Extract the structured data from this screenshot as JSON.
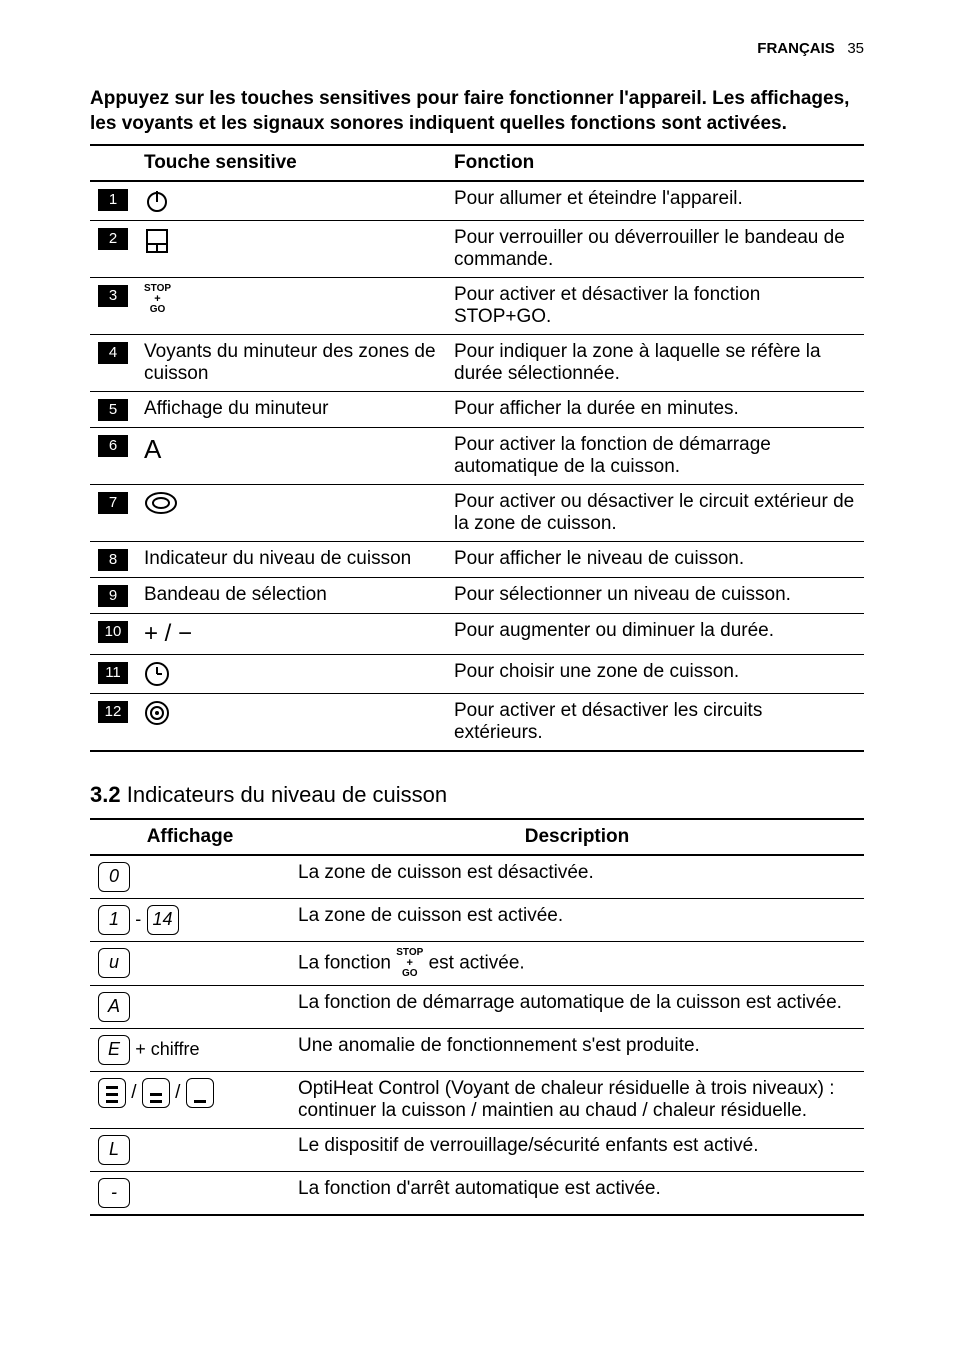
{
  "header": {
    "lang": "FRANÇAIS",
    "page_number": "35"
  },
  "intro": "Appuyez sur les touches sensitives pour faire fonctionner l'appareil. Les affichages, les voyants et les signaux sonores indiquent quelles fonctions sont activées.",
  "table1": {
    "headers": {
      "touche": "Touche sensitive",
      "fonction": "Fonction"
    },
    "rows": [
      {
        "num": "1",
        "icon": "power",
        "label": "",
        "fn": "Pour allumer et éteindre l'appareil."
      },
      {
        "num": "2",
        "icon": "lock-panel",
        "label": "",
        "fn": "Pour verrouiller ou déverrouiller le bandeau de commande."
      },
      {
        "num": "3",
        "icon": "stopgo",
        "label": "",
        "fn": "Pour activer et désactiver la fonction STOP+GO."
      },
      {
        "num": "4",
        "icon": "",
        "label": "Voyants du minuteur des zones de cuisson",
        "fn": "Pour indiquer la zone à laquelle se réfère la durée sélectionnée."
      },
      {
        "num": "5",
        "icon": "",
        "label": "Affichage du minuteur",
        "fn": "Pour afficher la durée en minutes."
      },
      {
        "num": "6",
        "icon": "letter-a",
        "label": "",
        "fn": "Pour activer la fonction de démarrage automatique de la cuisson."
      },
      {
        "num": "7",
        "icon": "oval-ring",
        "label": "",
        "fn": "Pour activer ou désactiver le circuit extérieur de la zone de cuisson."
      },
      {
        "num": "8",
        "icon": "",
        "label": "Indicateur du niveau de cuisson",
        "fn": "Pour afficher le niveau de cuisson."
      },
      {
        "num": "9",
        "icon": "",
        "label": "Bandeau de sélection",
        "fn": "Pour sélectionner un niveau de cuisson."
      },
      {
        "num": "10",
        "icon": "plus-minus",
        "label": "",
        "fn": "Pour augmenter ou diminuer la durée."
      },
      {
        "num": "11",
        "icon": "clock",
        "label": "",
        "fn": "Pour choisir une zone de cuisson."
      },
      {
        "num": "12",
        "icon": "double-ring",
        "label": "",
        "fn": "Pour activer et désactiver les circuits extérieurs."
      }
    ]
  },
  "section32": {
    "num": "3.2",
    "title": "Indicateurs du niveau de cuisson"
  },
  "table2": {
    "headers": {
      "affichage": "Affichage",
      "description": "Description"
    },
    "rows": [
      {
        "disp_type": "seg-single",
        "glyph": "0",
        "extra": "",
        "desc": "La zone de cuisson est désactivée."
      },
      {
        "disp_type": "seg-range",
        "glyph": "1",
        "glyph2": "14",
        "desc": "La zone de cuisson est activée."
      },
      {
        "disp_type": "seg-single",
        "glyph": "u",
        "extra": "",
        "desc_prefix": "La fonction ",
        "desc_suffix": " est activée."
      },
      {
        "disp_type": "seg-single",
        "glyph": "A",
        "extra": "",
        "desc": "La fonction de démarrage automatique de la cuisson est activée."
      },
      {
        "disp_type": "seg-plus",
        "glyph": "E",
        "extra": "+ chiffre",
        "desc": "Une anomalie de fonctionnement s'est produite."
      },
      {
        "disp_type": "seg-triple",
        "glyph": "",
        "extra": "",
        "desc": "OptiHeat Control (Voyant de chaleur résiduelle à trois niveaux) : continuer la cuisson / maintien au chaud / chaleur résiduelle."
      },
      {
        "disp_type": "seg-single",
        "glyph": "L",
        "extra": "",
        "desc": "Le dispositif de verrouillage/sécurité enfants est activé."
      },
      {
        "disp_type": "seg-single",
        "glyph": "-",
        "extra": "",
        "desc": "La fonction d'arrêt automatique est activée."
      }
    ]
  }
}
